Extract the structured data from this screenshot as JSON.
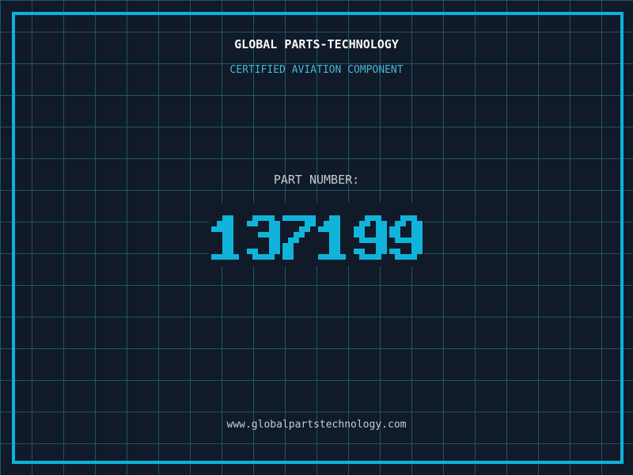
{
  "header": {
    "title": "GLOBAL PARTS-TECHNOLOGY",
    "subtitle": "CERTIFIED AVIATION COMPONENT"
  },
  "part": {
    "label": "PART NUMBER:",
    "number": "137199"
  },
  "footer": {
    "url": "www.globalpartstechnology.com"
  },
  "colors": {
    "background": "#101a28",
    "grid_line": "#215469",
    "frame": "#0cb2dc",
    "digits": "#10b4da",
    "title": "#f5f8fa",
    "subtitle": "#45b5d8",
    "muted_text": "#c2cdd6"
  }
}
